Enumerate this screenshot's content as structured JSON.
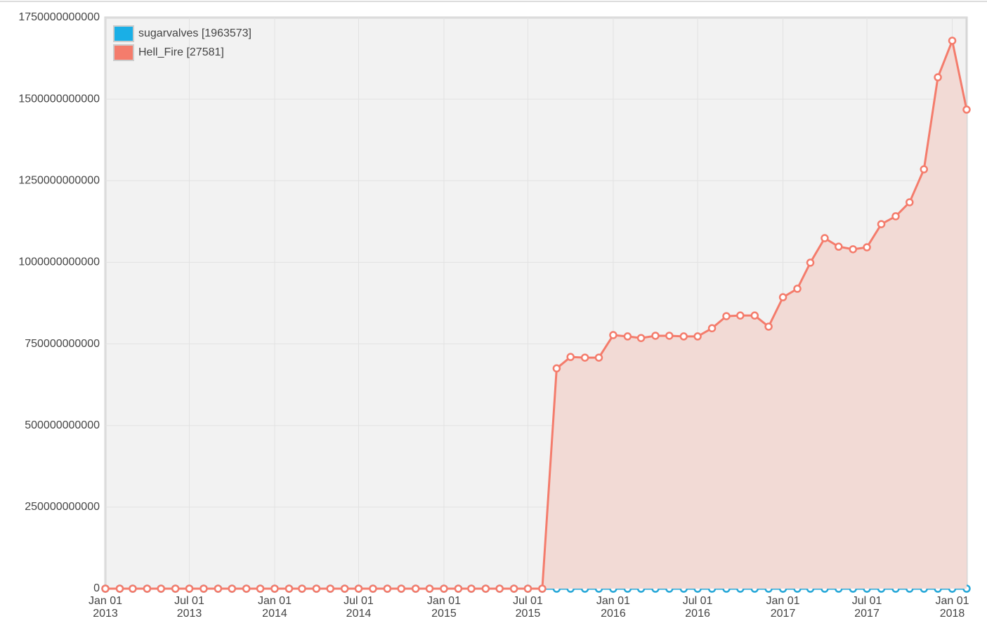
{
  "chart_data": {
    "type": "area-line",
    "x": [
      "2013-01-01",
      "2013-02-01",
      "2013-03-01",
      "2013-04-01",
      "2013-05-01",
      "2013-06-01",
      "2013-07-01",
      "2013-08-01",
      "2013-09-01",
      "2013-10-01",
      "2013-11-01",
      "2013-12-01",
      "2014-01-01",
      "2014-02-01",
      "2014-03-01",
      "2014-04-01",
      "2014-05-01",
      "2014-06-01",
      "2014-07-01",
      "2014-08-01",
      "2014-09-01",
      "2014-10-01",
      "2014-11-01",
      "2014-12-01",
      "2015-01-01",
      "2015-02-01",
      "2015-03-01",
      "2015-04-01",
      "2015-05-01",
      "2015-06-01",
      "2015-07-01",
      "2015-08-01",
      "2015-09-01",
      "2015-10-01",
      "2015-11-01",
      "2015-12-01",
      "2016-01-01",
      "2016-02-01",
      "2016-03-01",
      "2016-04-01",
      "2016-05-01",
      "2016-06-01",
      "2016-07-01",
      "2016-08-01",
      "2016-09-01",
      "2016-10-01",
      "2016-11-01",
      "2016-12-01",
      "2017-01-01",
      "2017-02-01",
      "2017-03-01",
      "2017-04-01",
      "2017-05-01",
      "2017-06-01",
      "2017-07-01",
      "2017-08-01",
      "2017-09-01",
      "2017-10-01",
      "2017-11-01",
      "2017-12-01",
      "2018-01-01",
      "2018-02-01"
    ],
    "series": [
      {
        "name": "sugarvalves [1963573]",
        "color": "#29a8d8",
        "legend_color": "#1aafe6",
        "values": [
          0,
          0,
          0,
          0,
          0,
          0,
          0,
          0,
          0,
          0,
          0,
          0,
          0,
          0,
          0,
          0,
          0,
          0,
          0,
          0,
          0,
          0,
          0,
          0,
          0,
          0,
          0,
          0,
          0,
          0,
          0,
          0,
          0,
          0,
          0,
          0,
          0,
          0,
          0,
          0,
          0,
          0,
          0,
          0,
          0,
          0,
          0,
          0,
          0,
          0,
          0,
          0,
          0,
          0,
          0,
          0,
          0,
          0,
          0,
          0,
          0,
          0
        ]
      },
      {
        "name": "Hell_Fire [27581]",
        "color": "#f47c6c",
        "legend_color": "#f47c6c",
        "fill": "#f2dad5",
        "values": [
          0,
          0,
          0,
          0,
          0,
          0,
          0,
          0,
          0,
          0,
          0,
          0,
          0,
          0,
          0,
          0,
          0,
          0,
          0,
          0,
          0,
          0,
          0,
          0,
          0,
          0,
          0,
          0,
          0,
          0,
          0,
          0,
          675000000000,
          710000000000,
          708000000000,
          708000000000,
          777000000000,
          773000000000,
          768000000000,
          775000000000,
          775000000000,
          773000000000,
          773000000000,
          798000000000,
          835000000000,
          837000000000,
          837000000000,
          803000000000,
          893000000000,
          919000000000,
          999000000000,
          1074000000000,
          1048000000000,
          1040000000000,
          1046000000000,
          1117000000000,
          1141000000000,
          1184000000000,
          1285000000000,
          1567000000000,
          1679000000000,
          1468000000000
        ]
      }
    ],
    "xlim": [
      "2013-01-01",
      "2018-02-01"
    ],
    "xticks": [
      {
        "value": "2013-01-01",
        "label": "Jan 01",
        "label2": "2013"
      },
      {
        "value": "2013-07-01",
        "label": "Jul 01",
        "label2": "2013"
      },
      {
        "value": "2014-01-01",
        "label": "Jan 01",
        "label2": "2014"
      },
      {
        "value": "2014-07-01",
        "label": "Jul 01",
        "label2": "2014"
      },
      {
        "value": "2015-01-01",
        "label": "Jan 01",
        "label2": "2015"
      },
      {
        "value": "2015-07-01",
        "label": "Jul 01",
        "label2": "2015"
      },
      {
        "value": "2016-01-01",
        "label": "Jan 01",
        "label2": "2016"
      },
      {
        "value": "2016-07-01",
        "label": "Jul 01",
        "label2": "2016"
      },
      {
        "value": "2017-01-01",
        "label": "Jan 01",
        "label2": "2017"
      },
      {
        "value": "2017-07-01",
        "label": "Jul 01",
        "label2": "2017"
      },
      {
        "value": "2018-01-01",
        "label": "Jan 01",
        "label2": "2018"
      }
    ],
    "ylim": [
      0,
      1750000000000
    ],
    "yticks": [
      0,
      250000000000,
      500000000000,
      750000000000,
      1000000000000,
      1250000000000,
      1500000000000,
      1750000000000
    ],
    "grid": true,
    "legend": "top-left"
  }
}
